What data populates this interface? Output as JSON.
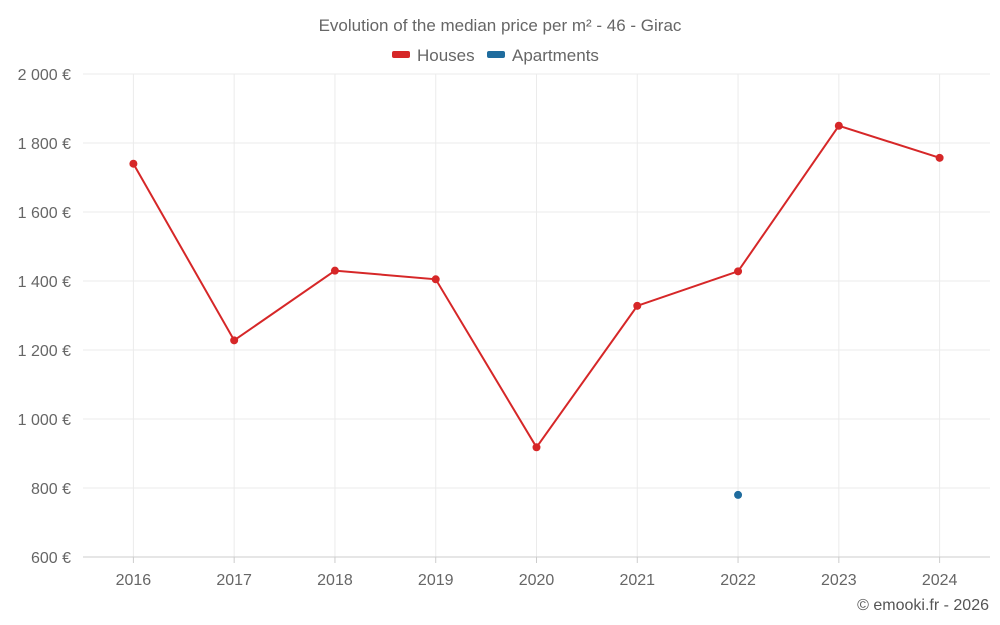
{
  "chart_data": {
    "type": "line",
    "title": "Evolution of the median price per m² - 46 - Girac",
    "categories": [
      "2016",
      "2017",
      "2018",
      "2019",
      "2020",
      "2021",
      "2022",
      "2023",
      "2024"
    ],
    "ylim": [
      600,
      2000
    ],
    "yticks": [
      600,
      800,
      1000,
      1200,
      1400,
      1600,
      1800,
      2000
    ],
    "ytick_labels": [
      "600 €",
      "800 €",
      "1 000 €",
      "1 200 €",
      "1 400 €",
      "1 600 €",
      "1 800 €",
      "2 000 €"
    ],
    "grid": true,
    "legend_position": "top-center",
    "series": [
      {
        "name": "Houses",
        "color": "#d62728",
        "values": [
          1740,
          1228,
          1430,
          1405,
          918,
          1328,
          1428,
          1850,
          1757
        ]
      },
      {
        "name": "Apartments",
        "color": "#1f6c9e",
        "values": [
          null,
          null,
          null,
          null,
          null,
          null,
          780,
          null,
          null
        ]
      }
    ]
  },
  "credit": "© emooki.fr - 2026"
}
